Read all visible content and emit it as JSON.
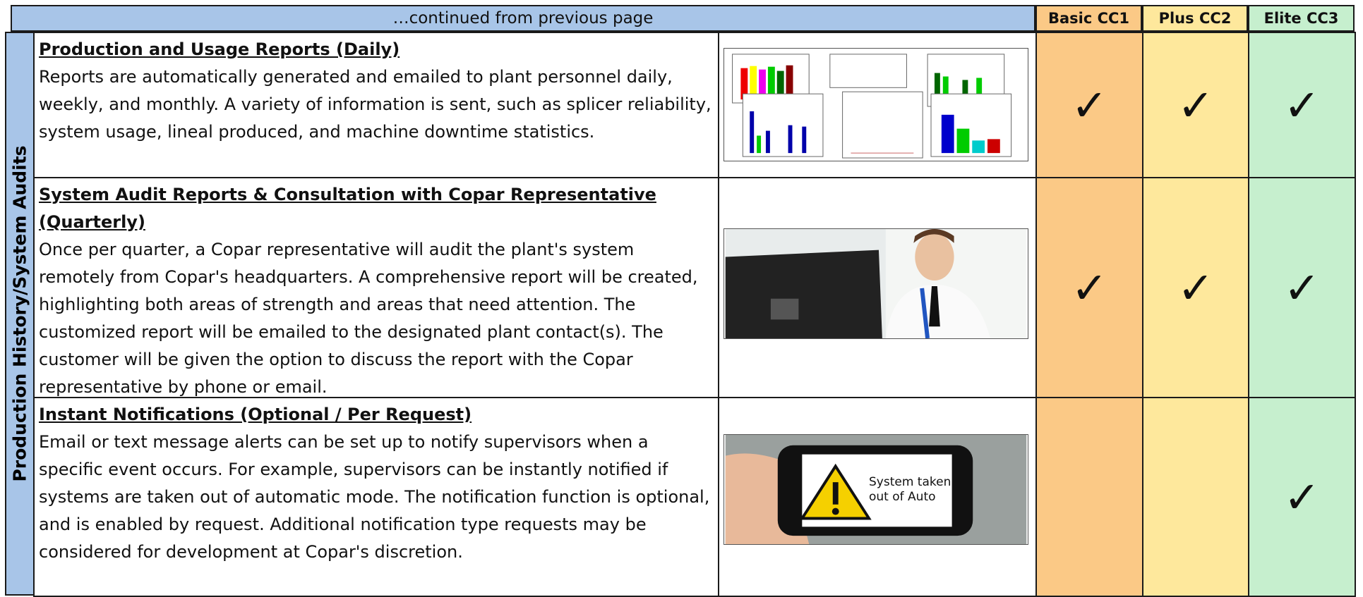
{
  "header": {
    "continued": "…continued from previous page",
    "tiers": [
      "Basic CC1",
      "Plus CC2",
      "Elite CC3"
    ]
  },
  "section": "Production History/System Audits",
  "rows": [
    {
      "title": "Production and Usage Reports (Daily)",
      "text": "Reports are automatically generated and emailed to plant personnel daily, weekly, and monthly.  A variety of information is sent, such as splicer reliability, system usage, lineal produced, and machine downtime statistics.",
      "checks": [
        "✓",
        "✓",
        "✓"
      ]
    },
    {
      "title": "System Audit Reports & Consultation with Copar Representative (Quarterly)",
      "text": "Once per quarter, a Copar representative will audit the plant's system remotely from Copar's headquarters.  A comprehensive report will be created, highlighting both areas of strength and areas that need attention.  The customized report will be emailed to the designated plant contact(s).  The customer will be given the option to discuss the report with the Copar representative by phone or email.",
      "checks": [
        "✓",
        "✓",
        "✓"
      ]
    },
    {
      "title": "Instant Notifications (Optional / Per Request)",
      "text": "Email or text message alerts can be set up to notify supervisors when a specific event occurs.  For example, supervisors can be instantly notified if systems are taken out of automatic mode.  The notification function is optional, and is enabled by request.  Additional notification type requests may be considered for development at Copar's discretion.",
      "checks": [
        null,
        null,
        "✓"
      ]
    }
  ],
  "image_caption": "System taken out of Auto"
}
